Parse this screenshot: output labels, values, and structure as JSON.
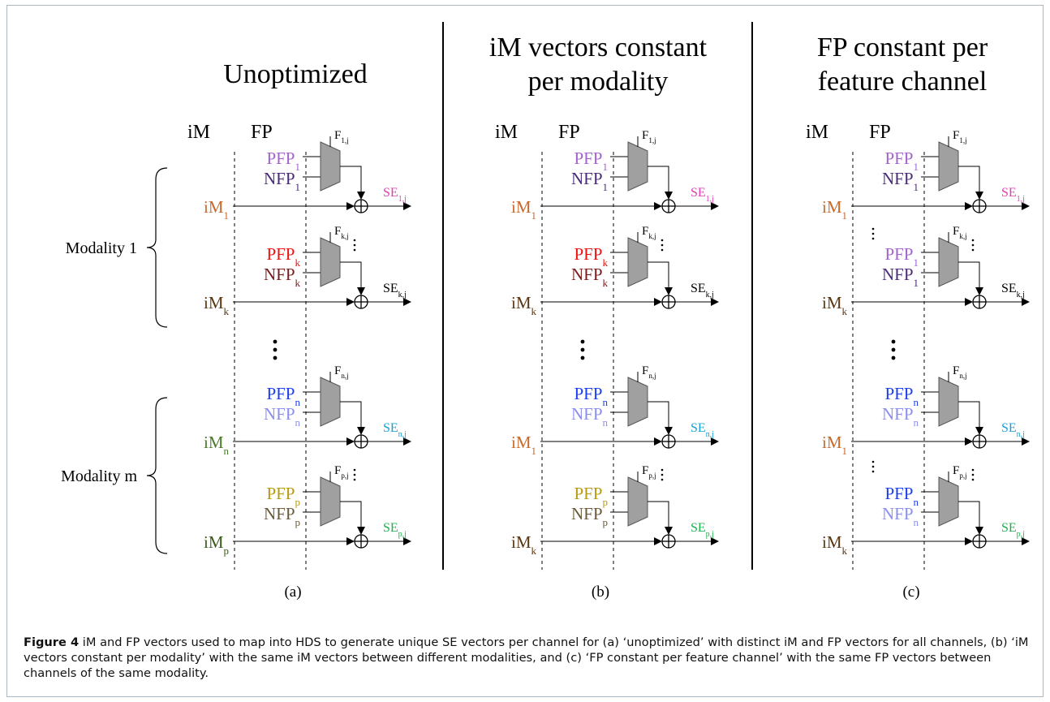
{
  "panels": [
    {
      "title_lines": [
        "Unoptimized"
      ],
      "im_header": "iM",
      "fp_header": "FP",
      "subfigure_label": "(a)",
      "rows": [
        {
          "im": "iM",
          "im_sub": "1",
          "im_color": "#c8692c",
          "pfp": "PFP",
          "pfp_sub": "1",
          "pfp_color": "#a362d0",
          "nfp": "NFP",
          "nfp_sub": "1",
          "nfp_color": "#4b2a7a",
          "f": "F",
          "f_sub": "1,j",
          "se": "SE",
          "se_sub": "1,j",
          "se_color": "#e040b0"
        },
        {
          "im": "iM",
          "im_sub": "k",
          "im_color": "#5a3512",
          "pfp": "PFP",
          "pfp_sub": "k",
          "pfp_color": "#ee1111",
          "nfp": "NFP",
          "nfp_sub": "k",
          "nfp_color": "#7a1a1a",
          "f": "F",
          "f_sub": "k,j",
          "se": "SE",
          "se_sub": "k,j",
          "se_color": "#000000"
        },
        {
          "im": "iM",
          "im_sub": "n",
          "im_color": "#4a7a2a",
          "pfp": "PFP",
          "pfp_sub": "n",
          "pfp_color": "#1a3ef0",
          "nfp": "NFP",
          "nfp_sub": "n",
          "nfp_color": "#8a8ef0",
          "f": "F",
          "f_sub": "n,j",
          "se": "SE",
          "se_sub": "n,j",
          "se_color": "#1aa0d8"
        },
        {
          "im": "iM",
          "im_sub": "p",
          "im_color": "#3a5a1a",
          "pfp": "PFP",
          "pfp_sub": "p",
          "pfp_color": "#b89a10",
          "nfp": "NFP",
          "nfp_sub": "p",
          "nfp_color": "#6a5a3a",
          "f": "F",
          "f_sub": "p,j",
          "se": "SE",
          "se_sub": "p,j",
          "se_color": "#20b050"
        }
      ],
      "modality_labels": [
        "Modality 1",
        "Modality m"
      ]
    },
    {
      "title_lines": [
        "iM vectors constant",
        "per modality"
      ],
      "im_header": "iM",
      "fp_header": "FP",
      "subfigure_label": "(b)",
      "rows": [
        {
          "im": "iM",
          "im_sub": "1",
          "im_color": "#c8692c",
          "pfp": "PFP",
          "pfp_sub": "1",
          "pfp_color": "#a362d0",
          "nfp": "NFP",
          "nfp_sub": "1",
          "nfp_color": "#4b2a7a",
          "f": "F",
          "f_sub": "1,j",
          "se": "SE",
          "se_sub": "1,j",
          "se_color": "#e040b0"
        },
        {
          "im": "iM",
          "im_sub": "k",
          "im_color": "#5a3512",
          "pfp": "PFP",
          "pfp_sub": "k",
          "pfp_color": "#ee1111",
          "nfp": "NFP",
          "nfp_sub": "k",
          "nfp_color": "#7a1a1a",
          "f": "F",
          "f_sub": "k,j",
          "se": "SE",
          "se_sub": "k,j",
          "se_color": "#000000"
        },
        {
          "im": "iM",
          "im_sub": "1",
          "im_color": "#c8692c",
          "pfp": "PFP",
          "pfp_sub": "n",
          "pfp_color": "#1a3ef0",
          "nfp": "NFP",
          "nfp_sub": "n",
          "nfp_color": "#8a8ef0",
          "f": "F",
          "f_sub": "n,j",
          "se": "SE",
          "se_sub": "n,j",
          "se_color": "#1aa0d8"
        },
        {
          "im": "iM",
          "im_sub": "k",
          "im_color": "#5a3512",
          "pfp": "PFP",
          "pfp_sub": "p",
          "pfp_color": "#b89a10",
          "nfp": "NFP",
          "nfp_sub": "p",
          "nfp_color": "#6a5a3a",
          "f": "F",
          "f_sub": "p,j",
          "se": "SE",
          "se_sub": "p,j",
          "se_color": "#20b050"
        }
      ]
    },
    {
      "title_lines": [
        "FP constant per",
        "feature channel"
      ],
      "im_header": "iM",
      "fp_header": "FP",
      "subfigure_label": "(c)",
      "rows": [
        {
          "im": "iM",
          "im_sub": "1",
          "im_color": "#c8692c",
          "pfp": "PFP",
          "pfp_sub": "1",
          "pfp_color": "#a362d0",
          "nfp": "NFP",
          "nfp_sub": "1",
          "nfp_color": "#4b2a7a",
          "f": "F",
          "f_sub": "1,j",
          "se": "SE",
          "se_sub": "1,j",
          "se_color": "#e040b0"
        },
        {
          "im": "iM",
          "im_sub": "k",
          "im_color": "#5a3512",
          "pfp": "PFP",
          "pfp_sub": "1",
          "pfp_color": "#a362d0",
          "nfp": "NFP",
          "nfp_sub": "1",
          "nfp_color": "#4b2a7a",
          "f": "F",
          "f_sub": "k,j",
          "se": "SE",
          "se_sub": "k,j",
          "se_color": "#000000"
        },
        {
          "im": "iM",
          "im_sub": "1",
          "im_color": "#c8692c",
          "pfp": "PFP",
          "pfp_sub": "n",
          "pfp_color": "#1a3ef0",
          "nfp": "NFP",
          "nfp_sub": "n",
          "nfp_color": "#8a8ef0",
          "f": "F",
          "f_sub": "n,j",
          "se": "SE",
          "se_sub": "n,j",
          "se_color": "#1aa0d8"
        },
        {
          "im": "iM",
          "im_sub": "k",
          "im_color": "#5a3512",
          "pfp": "PFP",
          "pfp_sub": "n",
          "pfp_color": "#1a3ef0",
          "nfp": "NFP",
          "nfp_sub": "n",
          "nfp_color": "#8a8ef0",
          "f": "F",
          "f_sub": "p,j",
          "se": "SE",
          "se_sub": "p,j",
          "se_color": "#20b050"
        }
      ]
    }
  ],
  "colors": {
    "mux_fill": "#a0a0a0",
    "frame_border": "#a9b8c3"
  },
  "caption": {
    "label": "Figure 4",
    "text": " iM and FP vectors used to map into HDS to generate unique SE vectors per channel for (a) ‘unoptimized’ with distinct iM and FP vectors for all channels, (b) ‘iM vectors constant per modality’ with the same iM vectors between different modalities, and (c) ‘FP constant per feature channel’ with the same FP vectors between channels of the same modality."
  }
}
